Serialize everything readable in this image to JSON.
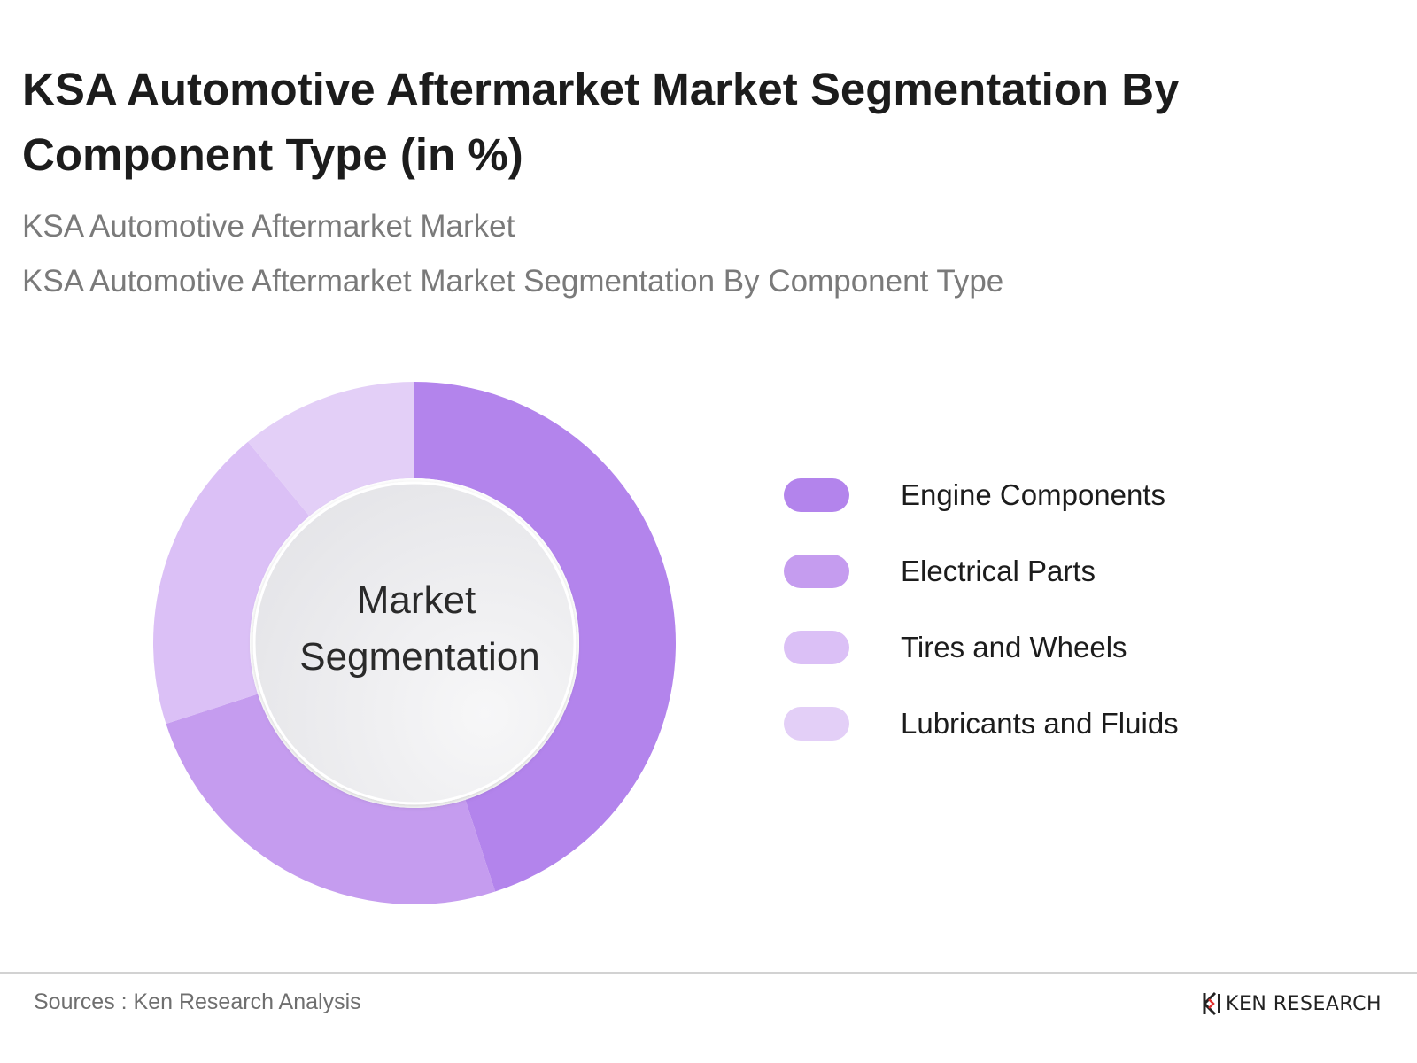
{
  "header": {
    "title": "KSA Automotive Aftermarket Market Segmentation By Component Type (in %)",
    "subtitle_1": "KSA Automotive Aftermarket Market",
    "subtitle_2": "KSA Automotive Aftermarket Market Segmentation By Component Type"
  },
  "chart_data": {
    "type": "pie",
    "variant": "donut",
    "center_label": "Market Segmentation",
    "categories": [
      "Engine Components",
      "Electrical Parts",
      "Tires and Wheels",
      "Lubricants and Fluids"
    ],
    "values": [
      45,
      25,
      19,
      11
    ],
    "colors": [
      "#b384ec",
      "#c59cef",
      "#dbc0f6",
      "#e3cff7"
    ],
    "legend_position": "right",
    "data_labels_shown": false
  },
  "footer": {
    "source": "Sources : Ken Research Analysis",
    "brand": "KEN RESEARCH",
    "rule_color": "#d2d2d2"
  }
}
